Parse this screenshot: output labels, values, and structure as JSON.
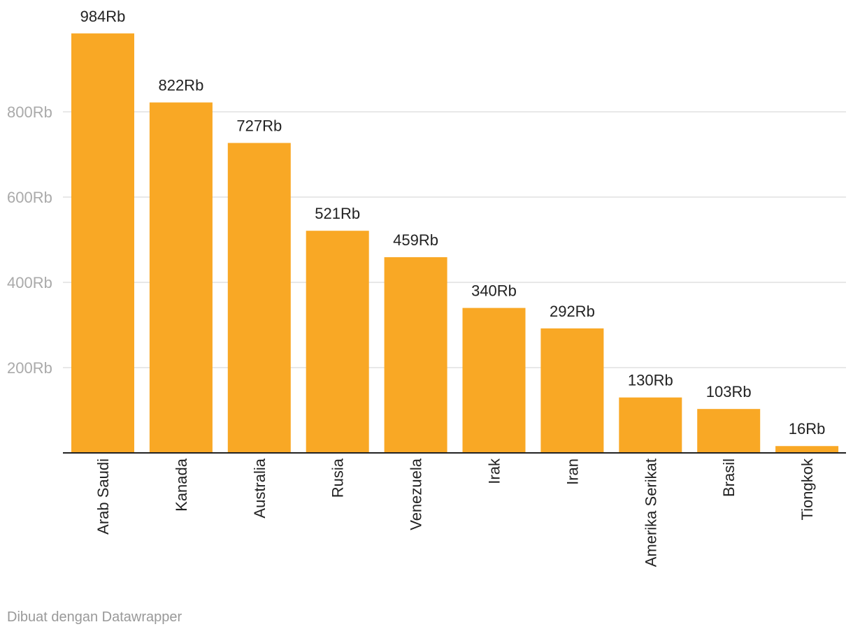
{
  "chart_data": {
    "type": "bar",
    "categories": [
      "Arab Saudi",
      "Kanada",
      "Australia",
      "Rusia",
      "Venezuela",
      "Irak",
      "Iran",
      "Amerika Serikat",
      "Brasil",
      "Tiongkok"
    ],
    "values": [
      984000,
      822000,
      727000,
      521000,
      459000,
      340000,
      292000,
      130000,
      103000,
      16000
    ],
    "value_labels": [
      "984Rb",
      "822Rb",
      "727Rb",
      "521Rb",
      "459Rb",
      "340Rb",
      "292Rb",
      "130Rb",
      "103Rb",
      "16Rb"
    ],
    "y_ticks": [
      200000,
      400000,
      600000,
      800000
    ],
    "y_tick_labels": [
      "200Rb",
      "400Rb",
      "600Rb",
      "800Rb"
    ],
    "ylim": [
      0,
      1000000
    ],
    "grid": true,
    "bar_color": "#f9a825",
    "gridline_color": "#e0e0e0",
    "axis_color": "#222222"
  },
  "footer": {
    "credit": "Dibuat dengan Datawrapper"
  }
}
